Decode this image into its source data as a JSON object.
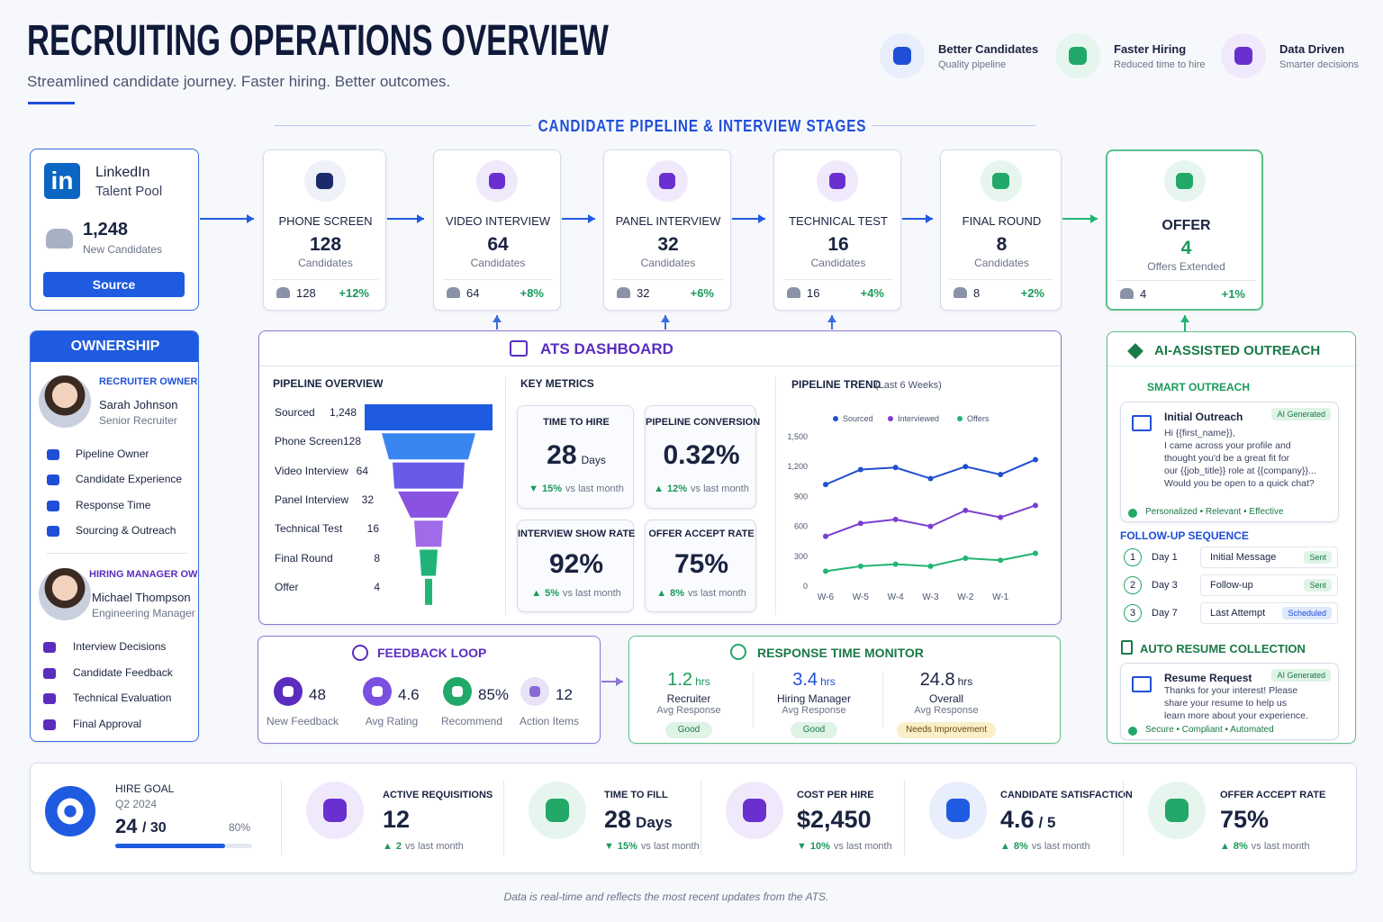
{
  "header": {
    "title": "RECRUITING OPERATIONS OVERVIEW",
    "subtitle": "Streamlined candidate journey. Faster hiring. Better outcomes."
  },
  "highlights": [
    {
      "title": "Better Candidates",
      "subtitle": "Quality pipeline"
    },
    {
      "title": "Faster Hiring",
      "subtitle": "Reduced time to hire"
    },
    {
      "title": "Data Driven",
      "subtitle": "Smarter decisions"
    }
  ],
  "pipeline": {
    "title": "CANDIDATE PIPELINE & INTERVIEW STAGES",
    "source": {
      "logo": "in",
      "name": "LinkedIn",
      "sub": "Talent Pool",
      "count": "1,248",
      "count_label": "New Candidates",
      "button": "Source"
    },
    "stages": [
      {
        "name": "PHONE SCREEN",
        "count": "128",
        "unit": "Candidates",
        "people": "128",
        "change": "+12%"
      },
      {
        "name": "VIDEO INTERVIEW",
        "count": "64",
        "unit": "Candidates",
        "people": "64",
        "change": "+8%"
      },
      {
        "name": "PANEL INTERVIEW",
        "count": "32",
        "unit": "Candidates",
        "people": "32",
        "change": "+6%"
      },
      {
        "name": "TECHNICAL TEST",
        "count": "16",
        "unit": "Candidates",
        "people": "16",
        "change": "+4%"
      },
      {
        "name": "FINAL ROUND",
        "count": "8",
        "unit": "Candidates",
        "people": "8",
        "change": "+2%"
      },
      {
        "name": "OFFER",
        "count": "4",
        "unit": "Offers Extended",
        "people": "4",
        "change": "+1%"
      }
    ]
  },
  "ownership": {
    "title": "OWNERSHIP",
    "owners": [
      {
        "role": "RECRUITER OWNER",
        "name": "Sarah Johnson",
        "title": "Senior Recruiter",
        "items": [
          "Pipeline Owner",
          "Candidate Experience",
          "Response Time",
          "Sourcing & Outreach"
        ]
      },
      {
        "role": "HIRING MANAGER OWNER",
        "name": "Michael Thompson",
        "title": "Engineering Manager",
        "items": [
          "Interview Decisions",
          "Candidate Feedback",
          "Technical Evaluation",
          "Final Approval"
        ]
      }
    ]
  },
  "ats": {
    "title": "ATS DASHBOARD",
    "overview": {
      "title": "PIPELINE OVERVIEW",
      "rows": [
        {
          "label": "Sourced",
          "value": "1,248"
        },
        {
          "label": "Phone Screen",
          "value": "128"
        },
        {
          "label": "Video Interview",
          "value": "64"
        },
        {
          "label": "Panel Interview",
          "value": "32"
        },
        {
          "label": "Technical Test",
          "value": "16"
        },
        {
          "label": "Final Round",
          "value": "8"
        },
        {
          "label": "Offer",
          "value": "4"
        }
      ]
    },
    "metrics": {
      "title": "KEY METRICS",
      "cards": [
        {
          "label": "TIME TO HIRE",
          "value": "28",
          "unit": "Days",
          "arrow": "▼",
          "change": "15%",
          "note": "vs last month"
        },
        {
          "label": "PIPELINE CONVERSION",
          "value": "0.32%",
          "arrow": "▲",
          "change": "12%",
          "note": "vs last month"
        },
        {
          "label": "INTERVIEW SHOW RATE",
          "value": "92%",
          "arrow": "▲",
          "change": "5%",
          "note": "vs last month"
        },
        {
          "label": "OFFER ACCEPT RATE",
          "value": "75%",
          "arrow": "▲",
          "change": "8%",
          "note": "vs last month"
        }
      ]
    }
  },
  "chart_data": {
    "type": "line",
    "title": "PIPELINE TREND",
    "subtitle": "(Last 6 Weeks)",
    "categories": [
      "W-6",
      "W-5",
      "W-4",
      "W-3",
      "W-2",
      "W-1",
      null
    ],
    "series": [
      {
        "name": "Sourced",
        "color": "#2050d0",
        "values": [
          1020,
          1170,
          1190,
          1080,
          1200,
          1120,
          1270
        ]
      },
      {
        "name": "Interviewed",
        "color": "#7b3fd0",
        "values": [
          500,
          630,
          670,
          600,
          760,
          690,
          810
        ]
      },
      {
        "name": "Offers",
        "color": "#22b573",
        "values": [
          150,
          200,
          220,
          200,
          280,
          260,
          330
        ]
      }
    ],
    "ylim": [
      0,
      1500
    ],
    "yticks": [
      0,
      300,
      600,
      900,
      {
        "value": 1200,
        "label": "1,200"
      },
      {
        "value": 1500,
        "label": "1,500"
      }
    ],
    "grid": false,
    "legend": "top"
  },
  "feedback": {
    "title": "FEEDBACK LOOP",
    "items": [
      {
        "value": "48",
        "label": "New Feedback"
      },
      {
        "value": "4.6",
        "label": "Avg Rating"
      },
      {
        "value": "85%",
        "label": "Recommend"
      },
      {
        "value": "12",
        "label": "Action Items"
      }
    ]
  },
  "response": {
    "title": "RESPONSE TIME MONITOR",
    "items": [
      {
        "value": "1.2",
        "unit": "hrs",
        "label": "Recruiter",
        "sub": "Avg Response",
        "status": "Good"
      },
      {
        "value": "3.4",
        "unit": "hrs",
        "label": "Hiring Manager",
        "sub": "Avg Response",
        "status": "Good"
      },
      {
        "value": "24.8",
        "unit": "hrs",
        "label": "Overall",
        "sub": "Avg Response",
        "status": "Needs Improvement"
      }
    ]
  },
  "outreach": {
    "title": "AI-ASSISTED OUTREACH",
    "smart": {
      "title": "SMART OUTREACH",
      "card": {
        "title": "Initial Outreach",
        "badge": "AI Generated",
        "body": [
          "Hi {{first_name}},",
          "I came across your profile and",
          "thought you'd be a great fit for",
          "our {{job_title}} role at {{company}}...",
          "Would you be open to a quick chat?"
        ],
        "tags": "Personalized • Relevant • Effective"
      }
    },
    "followup": {
      "title": "FOLLOW-UP SEQUENCE",
      "steps": [
        {
          "step": "1",
          "day": "Day 1",
          "message": "Initial Message",
          "status": "Sent"
        },
        {
          "step": "2",
          "day": "Day 3",
          "message": "Follow-up",
          "status": "Sent"
        },
        {
          "step": "3",
          "day": "Day 7",
          "message": "Last Attempt",
          "status": "Scheduled"
        }
      ]
    },
    "resume": {
      "title": "AUTO RESUME COLLECTION",
      "card": {
        "title": "Resume Request",
        "badge": "AI Generated",
        "body": [
          "Thanks for your interest! Please",
          "share your resume to help us",
          "learn more about your experience."
        ],
        "tags": "Secure • Compliant • Automated"
      }
    }
  },
  "kpis": {
    "goal": {
      "label": "HIRE GOAL",
      "sub": "Q2 2024",
      "value": "24",
      "target": "/ 30",
      "progress": "80%"
    },
    "cards": [
      {
        "label": "ACTIVE REQUISITIONS",
        "value": "12",
        "arrow": "▲",
        "change": "2",
        "note": "vs last month"
      },
      {
        "label": "TIME TO FILL",
        "value": "28",
        "unit": "Days",
        "arrow": "▼",
        "change": "15%",
        "note": "vs last month"
      },
      {
        "label": "COST PER HIRE",
        "value": "$2,450",
        "arrow": "▼",
        "change": "10%",
        "note": "vs last month"
      },
      {
        "label": "CANDIDATE SATISFACTION",
        "value": "4.6",
        "unit": "/ 5",
        "arrow": "▲",
        "change": "8%",
        "note": "vs last month"
      },
      {
        "label": "OFFER ACCEPT RATE",
        "value": "75%",
        "arrow": "▲",
        "change": "8%",
        "note": "vs last month"
      }
    ]
  },
  "footer": "Data is real-time and reflects the most recent updates from the ATS."
}
